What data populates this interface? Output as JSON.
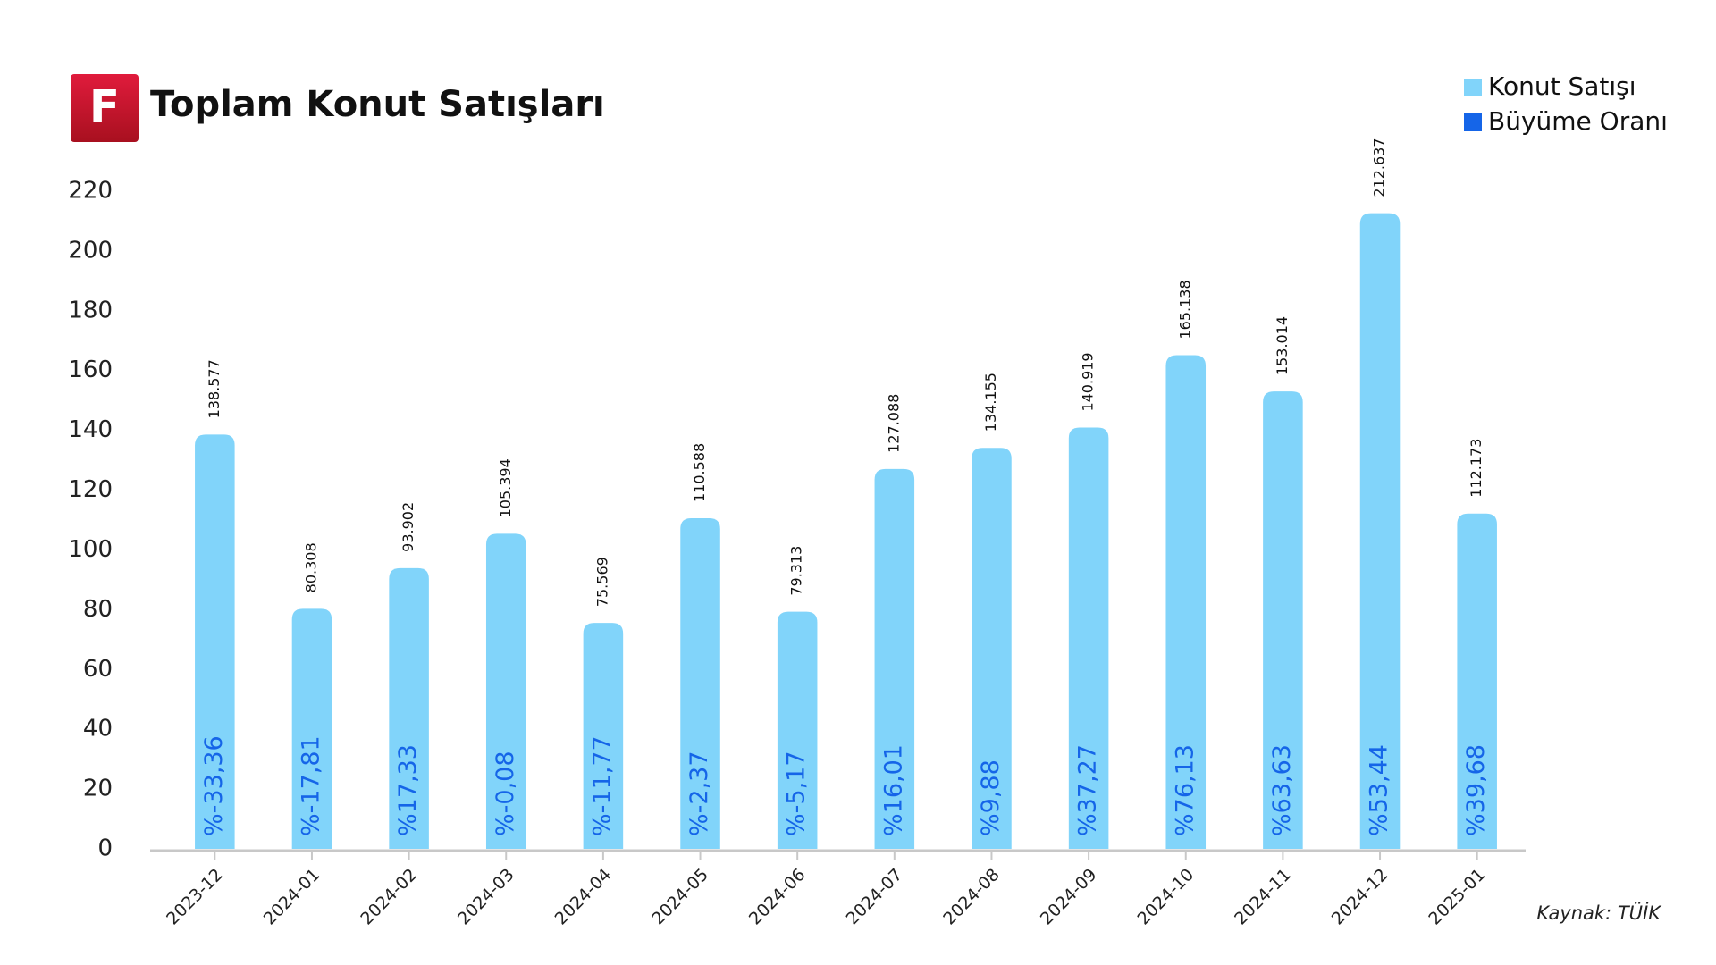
{
  "logo": "F",
  "chart_data": {
    "type": "bar",
    "title": "Toplam Konut Satışları",
    "categories": [
      "2023-12",
      "2024-01",
      "2024-02",
      "2024-03",
      "2024-04",
      "2024-05",
      "2024-06",
      "2024-07",
      "2024-08",
      "2024-09",
      "2024-10",
      "2024-11",
      "2024-12",
      "2025-01"
    ],
    "series": [
      {
        "name": "Konut Satışı",
        "color": "#81d4fa",
        "values": [
          138.577,
          80.308,
          93.902,
          105.394,
          75.569,
          110.588,
          79.313,
          127.088,
          134.155,
          140.919,
          165.138,
          153.014,
          212.637,
          112.173
        ],
        "value_labels": [
          "138.577",
          "80.308",
          "93.902",
          "105.394",
          "75.569",
          "110.588",
          "79.313",
          "127.088",
          "134.155",
          "140.919",
          "165.138",
          "153.014",
          "212.637",
          "112.173"
        ]
      },
      {
        "name": "Büyüme Oranı",
        "color": "#1565e8",
        "values": [
          -33.36,
          -17.81,
          17.33,
          -0.08,
          -11.77,
          -2.37,
          -5.17,
          16.01,
          9.88,
          37.27,
          76.13,
          63.63,
          53.44,
          39.68
        ],
        "value_labels": [
          "%-33,36",
          "%-17,81",
          "%17,33",
          "%-0,08",
          "%-11,77",
          "%-2,37",
          "%-5,17",
          "%16,01",
          "%9,88",
          "%37,27",
          "%76,13",
          "%63,63",
          "%53,44",
          "%39,68"
        ]
      }
    ],
    "ylim": [
      0,
      220
    ],
    "yticks": [
      0,
      20,
      40,
      60,
      80,
      100,
      120,
      140,
      160,
      180,
      200,
      220
    ],
    "grid": false,
    "legend": "top-right",
    "source": "Kaynak: TÜİK"
  }
}
